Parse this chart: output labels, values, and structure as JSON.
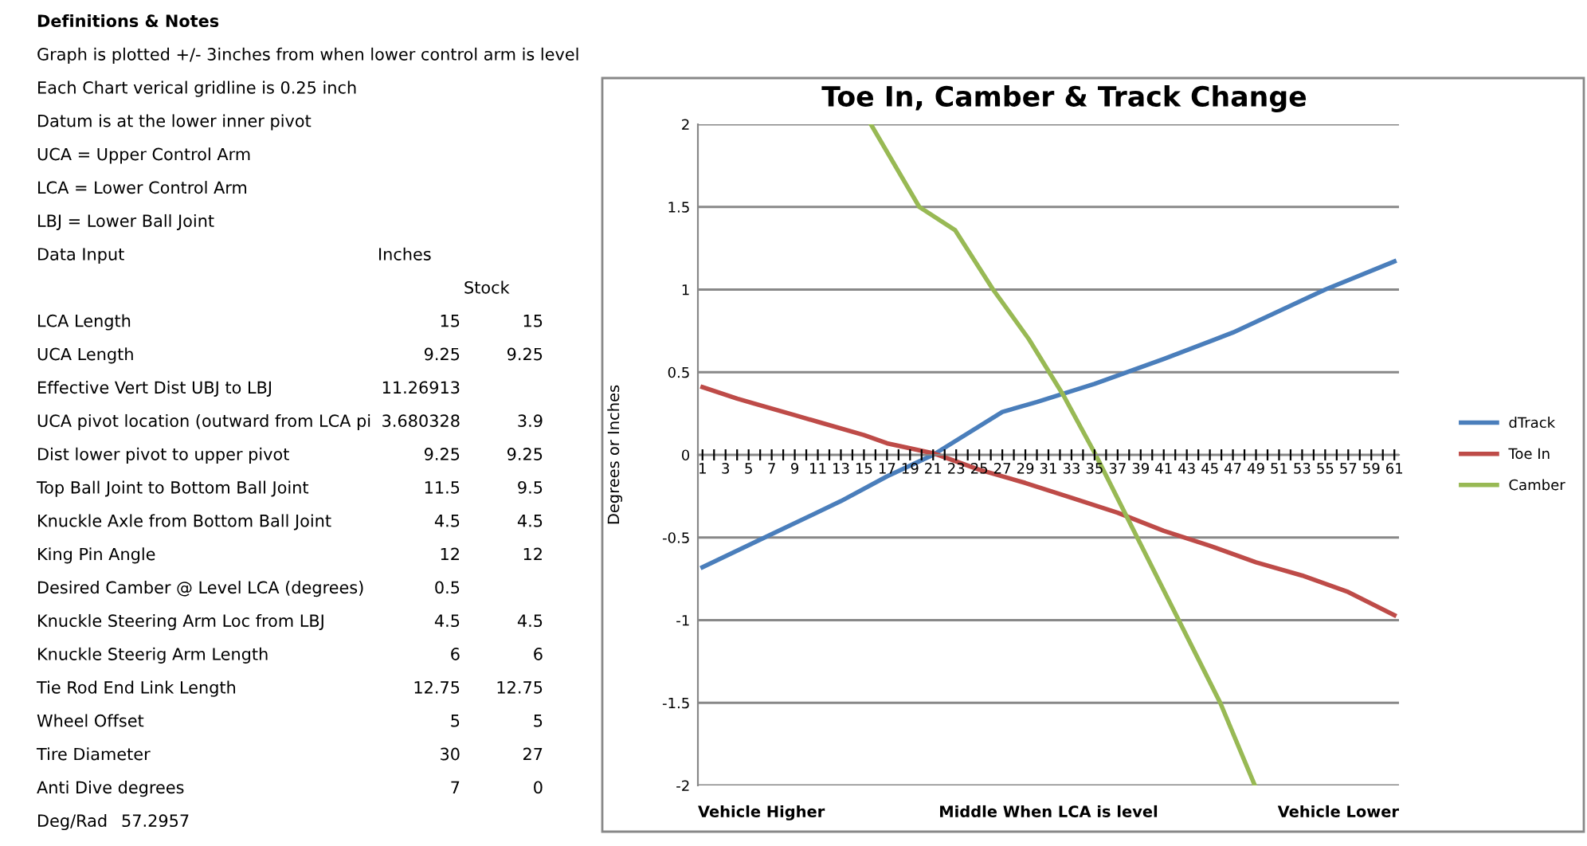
{
  "chart_data": [
    {
      "type": "other",
      "annotations": [
        "Definitions & Notes",
        "Graph is plotted +/- 3inches from when lower control arm is level",
        "Each Chart verical gridline is 0.25 inch",
        "Datum is at the lower inner pivot",
        "UCA = Upper Control Arm",
        "LCA = Lower Control Arm",
        "LBJ = Lower Ball Joint",
        "Data Input\t\tInches",
        "\t\t\tStock",
        "LCA Length\t\t15\t15",
        "UCA Length\t\t9.25\t9.25",
        "Effective Vert Dist UBJ to LBJ\t\t11.26913",
        "UCA pivot location (outward from LCA pi\t\t3.680328\t3.9",
        "Dist lower pivot to upper pivot\t\t9.25\t9.25",
        "Top Ball Joint to Bottom Ball Joint\t\t11.5\t9.5",
        "Knuckle Axle from Bottom Ball Joint\t\t4.5\t4.5",
        "King Pin Angle\t\t12\t12",
        "Desired Camber @ Level LCA (degrees)\t\t0.5",
        "Knuckle Steering Arm Loc from LBJ\t\t4.5\t4.5",
        "Knuckle Steerig Arm Length\t\t6\t6",
        "Tie Rod End Link Length\t\t12.75\t12.75",
        "Wheel Offset\t\t5\t5",
        "Tire Diameter\t\t30\t27",
        "Anti Dive degrees\t\t7\t0",
        "Deg/Rad\t57.2957"
      ]
    },
    {
      "type": "line",
      "title": "Toe In, Camber & Track Change",
      "ylabel": "Degrees or Inches",
      "annotations": [
        "Vehicle Higher",
        "Middle When LCA is level",
        "Vehicle Lower"
      ],
      "xlim": [
        0.6,
        61.4
      ],
      "ylim": [
        -2,
        2
      ],
      "yticks": [
        -2,
        -1.5,
        -1,
        -0.5,
        0,
        0.5,
        1,
        1.5,
        2
      ],
      "xticks": [
        1,
        {
          "value": 2,
          "label": null
        },
        3,
        {
          "value": 4,
          "label": null
        },
        5,
        {
          "value": 6,
          "label": null
        },
        7,
        {
          "value": 8,
          "label": null
        },
        9,
        {
          "value": 10,
          "label": null
        },
        11,
        {
          "value": 12,
          "label": null
        },
        13,
        {
          "value": 14,
          "label": null
        },
        15,
        {
          "value": 16,
          "label": null
        },
        17,
        {
          "value": 18,
          "label": null
        },
        19,
        {
          "value": 20,
          "label": null
        },
        21,
        {
          "value": 22,
          "label": null
        },
        23,
        {
          "value": 24,
          "label": null
        },
        25,
        {
          "value": 26,
          "label": null
        },
        27,
        {
          "value": 28,
          "label": null
        },
        29,
        {
          "value": 30,
          "label": null
        },
        31,
        {
          "value": 32,
          "label": null
        },
        33,
        {
          "value": 34,
          "label": null
        },
        35,
        {
          "value": 36,
          "label": null
        },
        37,
        {
          "value": 38,
          "label": null
        },
        39,
        {
          "value": 40,
          "label": null
        },
        41,
        {
          "value": 42,
          "label": null
        },
        43,
        {
          "value": 44,
          "label": null
        },
        45,
        {
          "value": 46,
          "label": null
        },
        47,
        {
          "value": 48,
          "label": null
        },
        49,
        {
          "value": 50,
          "label": null
        },
        51,
        {
          "value": 52,
          "label": null
        },
        53,
        {
          "value": 54,
          "label": null
        },
        55,
        {
          "value": 56,
          "label": null
        },
        57,
        {
          "value": 58,
          "label": null
        },
        59,
        {
          "value": 60,
          "label": null
        },
        61
      ],
      "grid": "y",
      "legend": "right",
      "marker": "none",
      "line_style": "solid",
      "series": [
        {
          "name": "dTrack",
          "color": "#4a7ebb",
          "x": [
            1,
            7,
            13,
            17,
            21,
            27,
            30,
            35,
            41,
            47,
            51,
            55,
            61
          ],
          "values": [
            -0.68,
            -0.48,
            -0.28,
            -0.13,
            0,
            0.26,
            0.32,
            0.43,
            0.58,
            0.74,
            0.87,
            1.0,
            1.17
          ]
        },
        {
          "name": "Toe In",
          "color": "#be4b48",
          "x": [
            1,
            4,
            9,
            11,
            15,
            17,
            21,
            25,
            29,
            33,
            37,
            41,
            45,
            49,
            53,
            57,
            61
          ],
          "values": [
            0.41,
            0.34,
            0.24,
            0.2,
            0.12,
            0.07,
            0.01,
            -0.09,
            -0.17,
            -0.26,
            -0.35,
            -0.46,
            -0.55,
            -0.65,
            -0.73,
            -0.83,
            -0.97
          ]
        },
        {
          "name": "Camber",
          "color": "#98b954",
          "x": [
            15.6,
            19.8,
            22.9,
            26.2,
            29.3,
            32.3,
            35.1,
            38.7,
            42.3,
            45.9,
            48.9
          ],
          "values": [
            2,
            1.5,
            1.36,
            1.0,
            0.7,
            0.36,
            0,
            -0.5,
            -1.0,
            -1.5,
            -2
          ]
        }
      ]
    }
  ]
}
